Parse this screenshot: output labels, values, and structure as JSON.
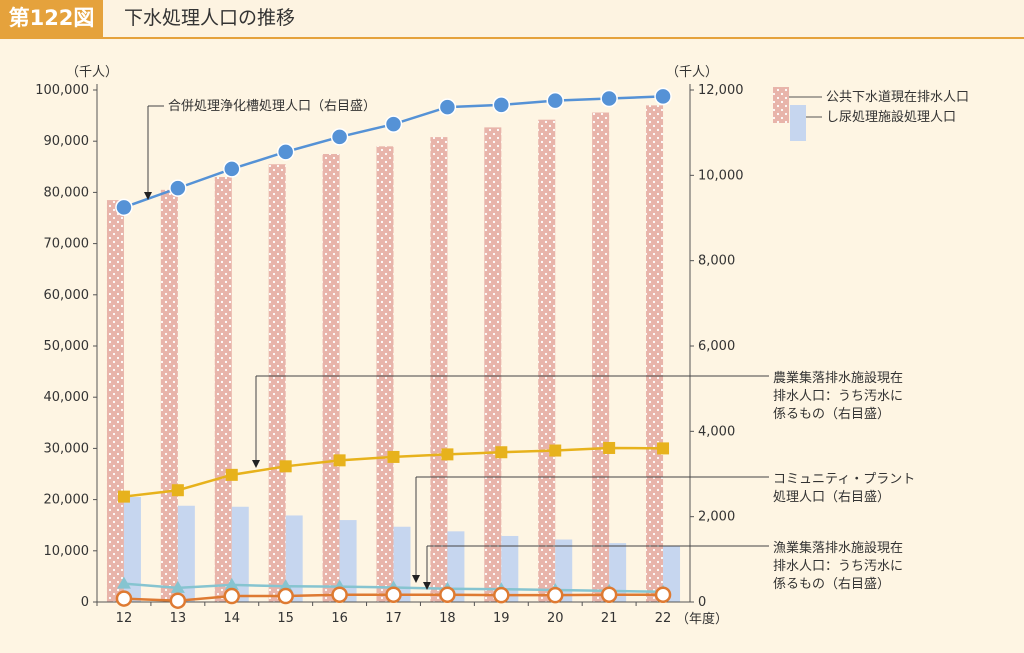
{
  "header": {
    "figure_number": "第122図",
    "title": "下水処理人口の推移"
  },
  "chart_data": {
    "type": "bar",
    "x_label": "（年度）",
    "categories": [
      "12",
      "13",
      "14",
      "15",
      "16",
      "17",
      "18",
      "19",
      "20",
      "21",
      "22"
    ],
    "left_axis": {
      "unit": "（千人）",
      "ylim": [
        0,
        100000
      ],
      "ticks": [
        "0",
        "10,000",
        "20,000",
        "30,000",
        "40,000",
        "50,000",
        "60,000",
        "70,000",
        "80,000",
        "90,000",
        "100,000"
      ]
    },
    "right_axis": {
      "unit": "（千人）",
      "ylim": [
        0,
        12000
      ],
      "ticks": [
        "0",
        "2,000",
        "4,000",
        "6,000",
        "8,000",
        "10,000",
        "12,000"
      ]
    },
    "bar_series": [
      {
        "name": "公共下水道現在排水人口",
        "axis": "left",
        "color": "#e8b4aa",
        "values": [
          78500,
          80500,
          83000,
          85500,
          87500,
          89000,
          90800,
          92700,
          94200,
          95600,
          97000
        ]
      },
      {
        "name": "し尿処理施設処理人口",
        "axis": "left",
        "color": "#c6d6ef",
        "values": [
          20500,
          18800,
          18600,
          16900,
          16000,
          14700,
          13800,
          12900,
          12200,
          11500,
          11000
        ]
      }
    ],
    "line_series": [
      {
        "name": "合併処理浄化槽処理人口（右目盛）",
        "axis": "right",
        "color": "#5592d6",
        "marker": "circle-filled",
        "values": [
          9250,
          9700,
          10150,
          10550,
          10900,
          11200,
          11600,
          11650,
          11750,
          11800,
          11850
        ]
      },
      {
        "name": "農業集落排水施設現在排水人口：うち汚水に係るもの（右目盛）",
        "axis": "right",
        "color": "#e7b21c",
        "marker": "square",
        "values": [
          2470,
          2620,
          2980,
          3180,
          3320,
          3400,
          3460,
          3510,
          3550,
          3610,
          3600
        ]
      },
      {
        "name": "コミュニティ・プラント処理人口（右目盛）",
        "axis": "right",
        "color": "#86c4d0",
        "marker": "triangle",
        "values": [
          430,
          330,
          400,
          370,
          360,
          340,
          310,
          300,
          280,
          260,
          240
        ]
      },
      {
        "name": "漁業集落排水施設現在排水人口：うち汚水に係るもの（右目盛）",
        "axis": "right",
        "color": "#de7a32",
        "marker": "circle-open",
        "values": [
          80,
          30,
          140,
          140,
          170,
          170,
          170,
          160,
          160,
          170,
          170
        ]
      }
    ],
    "legend": {
      "placement": "top-right",
      "items": [
        "公共下水道現在排水人口",
        "し尿処理施設処理人口"
      ]
    },
    "annotations": {
      "gappei": "合併処理浄化槽処理人口（右目盛）",
      "nogyo": [
        "農業集落排水施設現在",
        "排水人口：うち汚水に",
        "係るもの（右目盛）"
      ],
      "community": [
        "コミュニティ・プラント",
        "処理人口（右目盛）"
      ],
      "gyogyo": [
        "漁業集落排水施設現在",
        "排水人口：うち汚水に",
        "係るもの（右目盛）"
      ]
    }
  }
}
